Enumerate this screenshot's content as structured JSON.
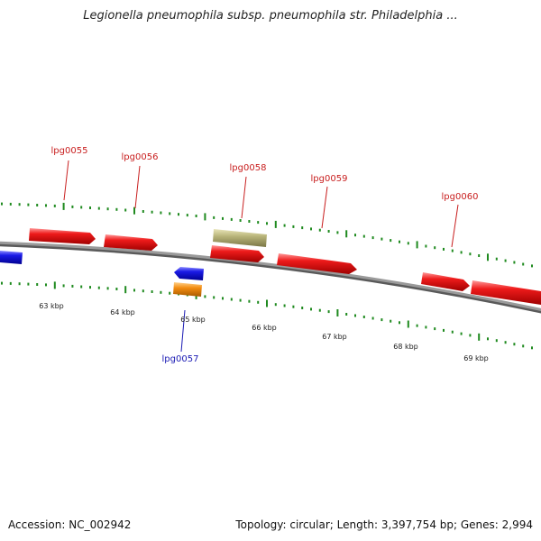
{
  "title": "Legionella pneumophila subsp. pneumophila str. Philadelphia ...",
  "footer": {
    "accession": "Accession: NC_002942",
    "summary": "Topology: circular; Length: 3,397,754 bp; Genes: 2,994"
  },
  "colors": {
    "backbone": "#8a8a8a",
    "ticks": "#1f8a1f",
    "gene_forward": "#ee1b1b",
    "gene_reverse": "#1a1ae6",
    "gene_other": "#b9b57a",
    "gene_rna": "#f28c10",
    "label_top": "#c81e1e",
    "label_bottom": "#1a1ab4",
    "kbp_text": "#222222"
  },
  "kbp_labels": [
    "63 kbp",
    "64 kbp",
    "65 kbp",
    "66 kbp",
    "67 kbp",
    "68 kbp",
    "69 kbp"
  ],
  "gene_labels": [
    {
      "text": "lpg0055",
      "side": "top"
    },
    {
      "text": "lpg0056",
      "side": "top"
    },
    {
      "text": "lpg0058",
      "side": "top"
    },
    {
      "text": "lpg0059",
      "side": "top"
    },
    {
      "text": "lpg0060",
      "side": "top"
    },
    {
      "text": "lpg0057",
      "side": "bottom"
    }
  ]
}
